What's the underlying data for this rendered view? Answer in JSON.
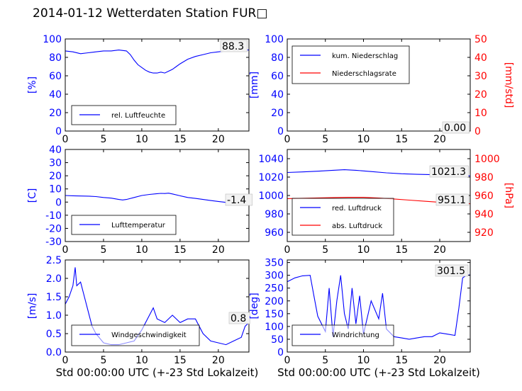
{
  "figure": {
    "title": "2014-01-12 Wetterdaten Station FUR□",
    "colors": {
      "primary": "#0000ff",
      "secondary": "#ff0000",
      "axis": "#000000"
    }
  },
  "chart_data": [
    {
      "id": "humidity",
      "type": "line",
      "ylabel": "[%]",
      "xlabel": "",
      "xlim": [
        0,
        24
      ],
      "ylim": [
        0,
        100
      ],
      "xticks": [
        0,
        5,
        10,
        15,
        20
      ],
      "yticks": [
        0,
        20,
        40,
        60,
        80,
        100
      ],
      "legend": {
        "placement": "lower-left",
        "entries": [
          "rel. Luftfeuchte"
        ]
      },
      "current_value": "88.3",
      "series": [
        {
          "name": "rel. Luftfeuchte",
          "color": "#0000ff",
          "x": [
            0,
            1,
            2,
            3,
            4,
            5,
            6,
            7,
            8,
            8.5,
            9,
            9.5,
            10,
            10.5,
            11,
            11.5,
            12,
            12.5,
            13,
            13.5,
            14,
            14.5,
            15,
            16,
            17,
            18,
            19,
            20,
            21,
            22,
            23,
            24
          ],
          "y": [
            87,
            86,
            84,
            85,
            86,
            87,
            87,
            88,
            87,
            83,
            77,
            72,
            69,
            66,
            64,
            63,
            63,
            64,
            63,
            65,
            67,
            70,
            73,
            78,
            81,
            83,
            85,
            86,
            87,
            88,
            88,
            88
          ]
        }
      ]
    },
    {
      "id": "precip",
      "type": "line",
      "ylabel": "[mm]",
      "y2label": "[mm/std]",
      "xlabel": "",
      "xlim": [
        0,
        24
      ],
      "ylim": [
        0,
        100
      ],
      "y2lim": [
        0,
        50
      ],
      "xticks": [
        0,
        5,
        10,
        15,
        20
      ],
      "yticks": [
        0,
        20,
        40,
        60,
        80,
        100
      ],
      "y2ticks": [
        0,
        10,
        20,
        30,
        40,
        50
      ],
      "legend": {
        "placement": "upper-left",
        "entries": [
          "kum. Niederschlag",
          "Niederschlagsrate"
        ]
      },
      "current_value": "0.00",
      "series": [
        {
          "name": "kum. Niederschlag",
          "color": "#0000ff",
          "axis": "left",
          "x": [
            0,
            24
          ],
          "y": [
            0,
            0
          ]
        },
        {
          "name": "Niederschlagsrate",
          "color": "#ff0000",
          "axis": "right",
          "x": [
            0,
            24
          ],
          "y": [
            0,
            0
          ]
        }
      ]
    },
    {
      "id": "temp",
      "type": "line",
      "ylabel": "[C]",
      "xlabel": "",
      "xlim": [
        0,
        24
      ],
      "ylim": [
        -30,
        40
      ],
      "xticks": [
        0,
        5,
        10,
        15,
        20
      ],
      "yticks": [
        -30,
        -20,
        -10,
        0,
        10,
        20,
        30,
        40
      ],
      "legend": {
        "placement": "lower-left",
        "entries": [
          "Lufttemperatur"
        ]
      },
      "current_value": "-1.4",
      "series": [
        {
          "name": "Lufttemperatur",
          "color": "#0000ff",
          "x": [
            0,
            1,
            2,
            3,
            4,
            5,
            6,
            7,
            7.5,
            8,
            9,
            10,
            11,
            12,
            12.5,
            13,
            13.5,
            14,
            15,
            16,
            17,
            18,
            19,
            20,
            21,
            22,
            23,
            24
          ],
          "y": [
            5,
            4.8,
            4.6,
            4.5,
            4.2,
            3.5,
            3,
            2,
            1.6,
            2,
            3.5,
            5,
            5.8,
            6.4,
            6.6,
            6.5,
            6.8,
            6.2,
            4.8,
            3.5,
            2.8,
            2,
            1.2,
            0.5,
            -0.2,
            -0.8,
            -1.2,
            -1.4
          ]
        }
      ]
    },
    {
      "id": "pressure",
      "type": "line",
      "ylabel": "",
      "y2label": "[hPa]",
      "xlabel": "",
      "xlim": [
        0,
        24
      ],
      "ylim": [
        950,
        1050
      ],
      "y2lim": [
        910,
        1010
      ],
      "xticks": [
        0,
        5,
        10,
        15,
        20
      ],
      "yticks": [
        960,
        980,
        1000,
        1020,
        1040
      ],
      "y2ticks": [
        920,
        940,
        960,
        980,
        1000
      ],
      "legend": {
        "placement": "lower-left",
        "entries": [
          "red. Luftdruck",
          "abs. Luftdruck"
        ]
      },
      "current_values": [
        "1021.3",
        "951.1"
      ],
      "series": [
        {
          "name": "red. Luftdruck",
          "color": "#0000ff",
          "axis": "left",
          "x": [
            0,
            2,
            4,
            6,
            7.5,
            9,
            11,
            13,
            15,
            17,
            19,
            21,
            24
          ],
          "y": [
            1025,
            1025.6,
            1026.4,
            1027.4,
            1028,
            1027.4,
            1026,
            1024.6,
            1023.6,
            1023,
            1022.6,
            1022.2,
            1021.3
          ]
        },
        {
          "name": "abs. Luftdruck",
          "color": "#ff0000",
          "axis": "right",
          "x": [
            0,
            2,
            4,
            6,
            8,
            10,
            12,
            14,
            16,
            18,
            20,
            22,
            24
          ],
          "y": [
            956.6,
            957,
            957.4,
            957.8,
            958,
            958,
            957.2,
            956.2,
            955,
            953.8,
            952.6,
            951.6,
            951.1
          ]
        }
      ]
    },
    {
      "id": "wind-speed",
      "type": "line",
      "ylabel": "[m/s]",
      "xlabel": "Std 00:00:00 UTC (+-23 Std Lokalzeit)",
      "xlim": [
        0,
        24
      ],
      "ylim": [
        0,
        2.5
      ],
      "xticks": [
        0,
        5,
        10,
        15,
        20
      ],
      "yticks": [
        0.0,
        0.5,
        1.0,
        1.5,
        2.0,
        2.5
      ],
      "legend": {
        "placement": "lower-left",
        "entries": [
          "Windgeschwindigkeit"
        ]
      },
      "current_value": "0.8",
      "series": [
        {
          "name": "Windgeschwindigkeit",
          "color": "#0000ff",
          "x": [
            0,
            0.5,
            1,
            1.3,
            1.5,
            2,
            2.5,
            3,
            3.5,
            4,
            5,
            6,
            7,
            8,
            9,
            10,
            11,
            11.5,
            12,
            13,
            14,
            15,
            16,
            17,
            18,
            19,
            20,
            21,
            22,
            23,
            23.5,
            24
          ],
          "y": [
            1.3,
            1.5,
            1.8,
            2.3,
            1.8,
            1.9,
            1.5,
            1.1,
            0.7,
            0.5,
            0.25,
            0.2,
            0.2,
            0.25,
            0.3,
            0.6,
            1.0,
            1.2,
            0.9,
            0.8,
            1.0,
            0.8,
            0.9,
            0.9,
            0.5,
            0.3,
            0.25,
            0.2,
            0.3,
            0.4,
            0.7,
            0.8
          ]
        }
      ]
    },
    {
      "id": "wind-direction",
      "type": "line",
      "ylabel": "[deg]",
      "xlabel": "Std 00:00:00 UTC (+-23 Std Lokalzeit)",
      "xlim": [
        0,
        24
      ],
      "ylim": [
        0,
        360
      ],
      "xticks": [
        0,
        5,
        10,
        15,
        20
      ],
      "yticks": [
        0,
        50,
        100,
        150,
        200,
        250,
        300,
        350
      ],
      "legend": {
        "placement": "lower-left",
        "entries": [
          "Windrichtung"
        ]
      },
      "current_value": "301.5",
      "series": [
        {
          "name": "Windrichtung",
          "color": "#0000ff",
          "x": [
            0,
            1,
            2,
            3,
            3.5,
            4,
            5,
            5.5,
            6,
            6.5,
            7,
            7.5,
            8,
            8.5,
            9,
            9.5,
            10,
            11,
            12,
            12.5,
            13,
            14,
            15,
            16,
            17,
            18,
            19,
            20,
            21,
            22,
            22.5,
            23,
            23.5,
            24
          ],
          "y": [
            275,
            290,
            298,
            300,
            220,
            140,
            80,
            250,
            60,
            200,
            300,
            150,
            90,
            250,
            110,
            220,
            70,
            200,
            130,
            230,
            90,
            60,
            55,
            50,
            55,
            60,
            60,
            75,
            70,
            65,
            170,
            290,
            300,
            301.5
          ]
        }
      ]
    }
  ]
}
